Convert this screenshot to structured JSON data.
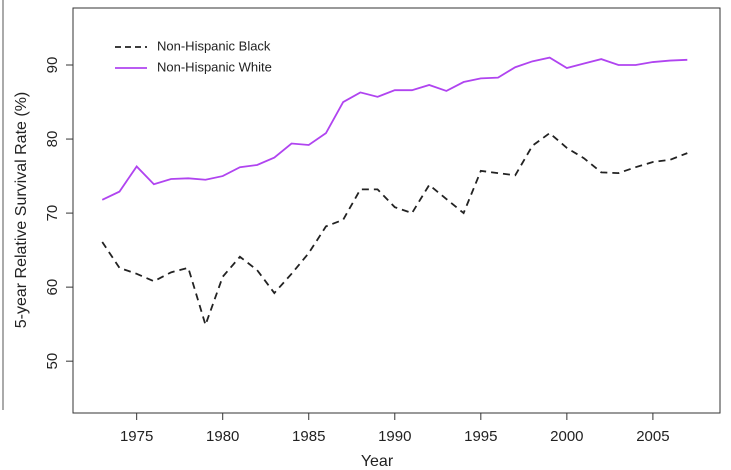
{
  "chart_data": {
    "type": "line",
    "x_label": "Year",
    "y_label": "5-year Relative Survival Rate (%)",
    "x": [
      1973,
      1974,
      1975,
      1976,
      1977,
      1978,
      1979,
      1980,
      1981,
      1982,
      1983,
      1984,
      1985,
      1986,
      1987,
      1988,
      1989,
      1990,
      1991,
      1992,
      1993,
      1994,
      1995,
      1996,
      1997,
      1998,
      1999,
      2000,
      2001,
      2002,
      2003,
      2004,
      2005,
      2006,
      2007
    ],
    "series": [
      {
        "name": "Non-Hispanic Black",
        "color": "#222222",
        "linestyle": "dashed",
        "values": [
          66.1,
          62.6,
          61.8,
          60.8,
          62.0,
          62.6,
          54.9,
          61.4,
          64.1,
          62.3,
          59.2,
          61.8,
          64.6,
          68.2,
          69.1,
          73.2,
          73.2,
          70.8,
          70.0,
          73.8,
          71.9,
          70.0,
          75.7,
          75.4,
          75.1,
          79.1,
          80.8,
          78.8,
          77.4,
          75.5,
          75.4,
          76.2,
          76.9,
          77.2,
          78.1
        ]
      },
      {
        "name": "Non-Hispanic White",
        "color": "#b044f0",
        "linestyle": "solid",
        "values": [
          71.8,
          72.9,
          76.3,
          73.9,
          74.6,
          74.7,
          74.5,
          75.0,
          76.2,
          76.5,
          77.5,
          79.4,
          79.2,
          80.8,
          85.0,
          86.3,
          85.7,
          86.6,
          86.6,
          87.3,
          86.5,
          87.7,
          88.2,
          88.3,
          89.7,
          90.5,
          91.0,
          89.6,
          90.2,
          90.8,
          90.0,
          90.0,
          90.4,
          90.6,
          90.7
        ]
      }
    ],
    "xlim": [
      1971.3,
      2008.9
    ],
    "xticks": [
      1975,
      1980,
      1985,
      1990,
      1995,
      2000,
      2005
    ],
    "ylim": [
      43,
      97.7
    ],
    "yticks": [
      50,
      60,
      70,
      80,
      90
    ],
    "legend": "top-left"
  }
}
